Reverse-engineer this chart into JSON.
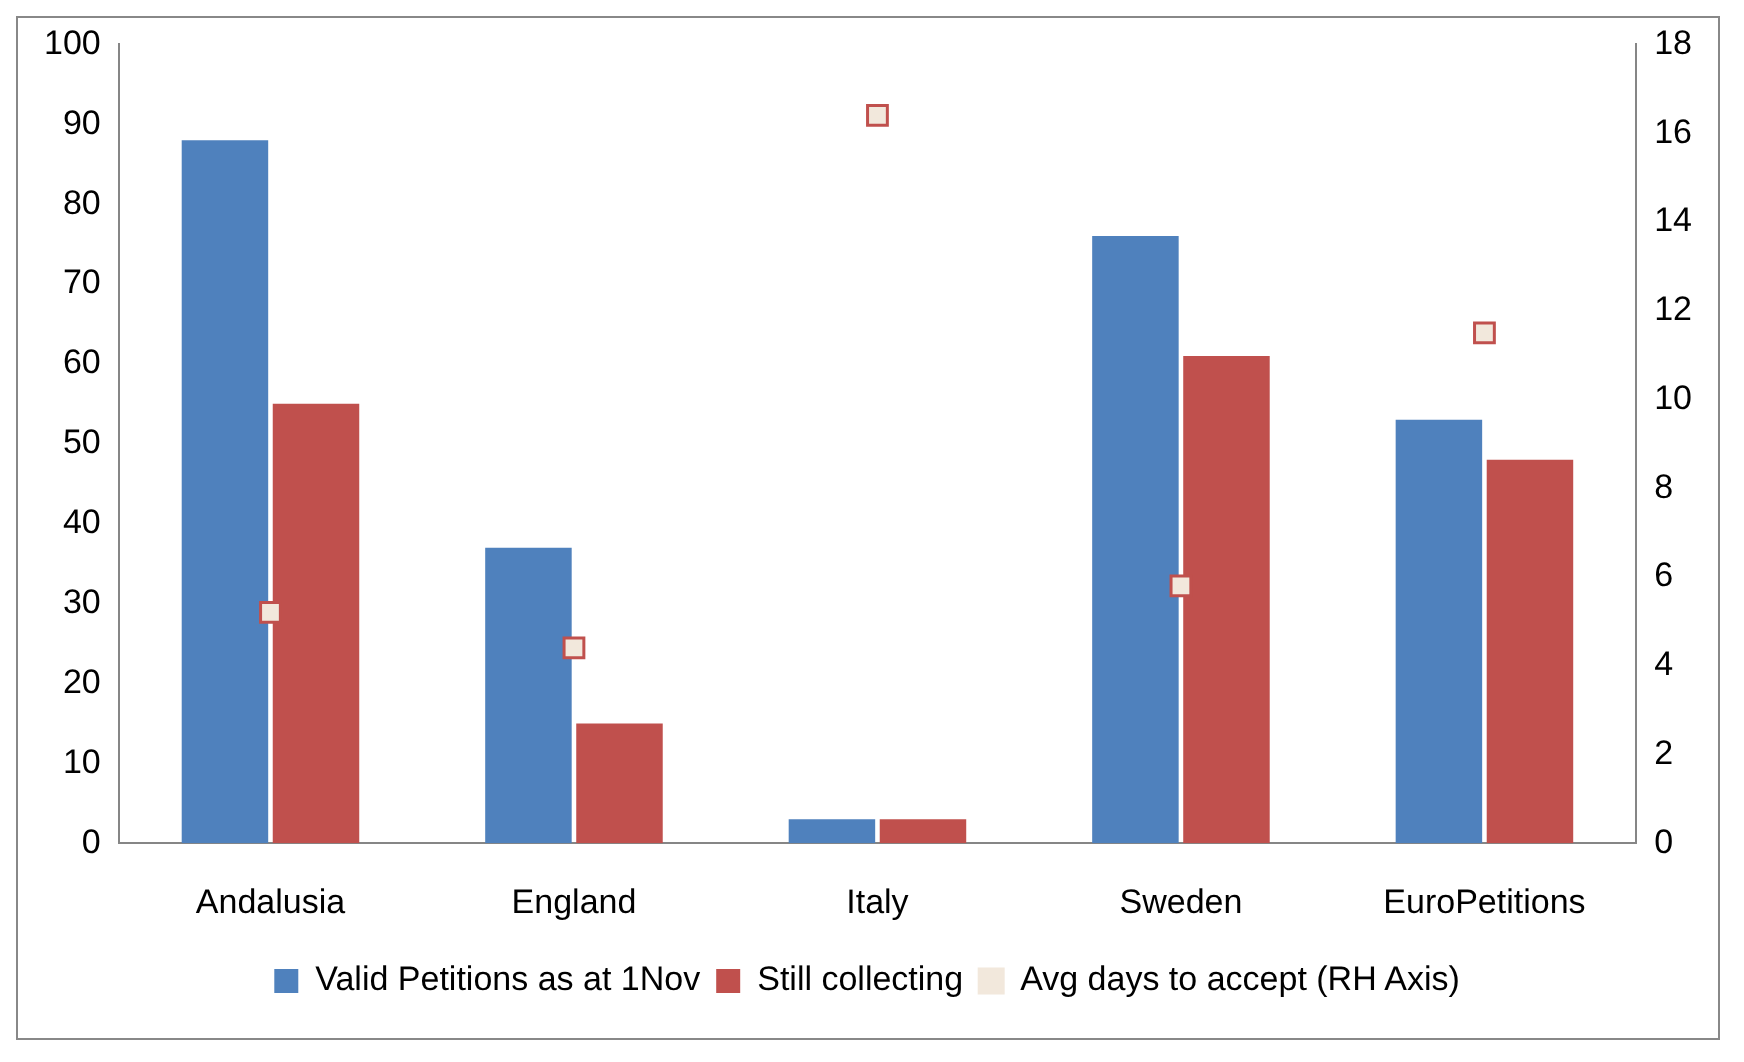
{
  "chart_data": {
    "type": "bar",
    "categories": [
      "Andalusia",
      "England",
      "Italy",
      "Sweden",
      "EuroPetitions"
    ],
    "series": [
      {
        "name": "Valid Petitions as at 1Nov",
        "color": "#4f81bd",
        "values": [
          88,
          37,
          3,
          76,
          53
        ]
      },
      {
        "name": "Still collecting",
        "color": "#c0504d",
        "values": [
          55,
          15,
          3,
          61,
          48
        ]
      },
      {
        "name": "Avg days to accept (RH Axis)",
        "type": "scatter",
        "axis": "y2",
        "color": "#c0504d",
        "values": [
          5.2,
          4.4,
          16.4,
          5.8,
          11.5
        ]
      }
    ],
    "ylim": [
      0,
      100
    ],
    "yticks": [
      0,
      10,
      20,
      30,
      40,
      50,
      60,
      70,
      80,
      90,
      100
    ],
    "y2lim": [
      0,
      18
    ],
    "y2ticks": [
      0,
      2,
      4,
      6,
      8,
      10,
      12,
      14,
      16,
      18
    ],
    "grid": false,
    "marker": "square",
    "legend": "bottom"
  }
}
